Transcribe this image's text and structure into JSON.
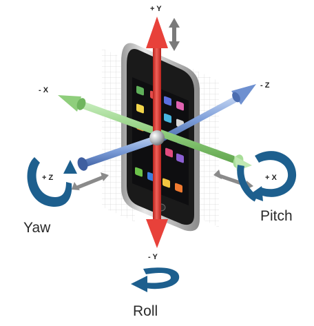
{
  "axes": {
    "plus_y": "+ Y",
    "minus_y": "- Y",
    "minus_x": "- X",
    "plus_x": "+ X",
    "minus_z": "- Z",
    "plus_z": "+ Z"
  },
  "rotations": {
    "yaw": "Yaw",
    "pitch": "Pitch",
    "roll": "Roll"
  },
  "colors": {
    "y_axis": "#e8413a",
    "x_axis": "#8fce7c",
    "z_axis": "#6b8fcf",
    "rotation_arrows": "#1d5f8e",
    "phone_body": "#1a1a1a",
    "phone_frame": "#c8c8c8"
  },
  "icons": [
    "vertical-double-arrow-icon",
    "diagonal-double-arrow-icon",
    "rotation-arrow-icon"
  ]
}
